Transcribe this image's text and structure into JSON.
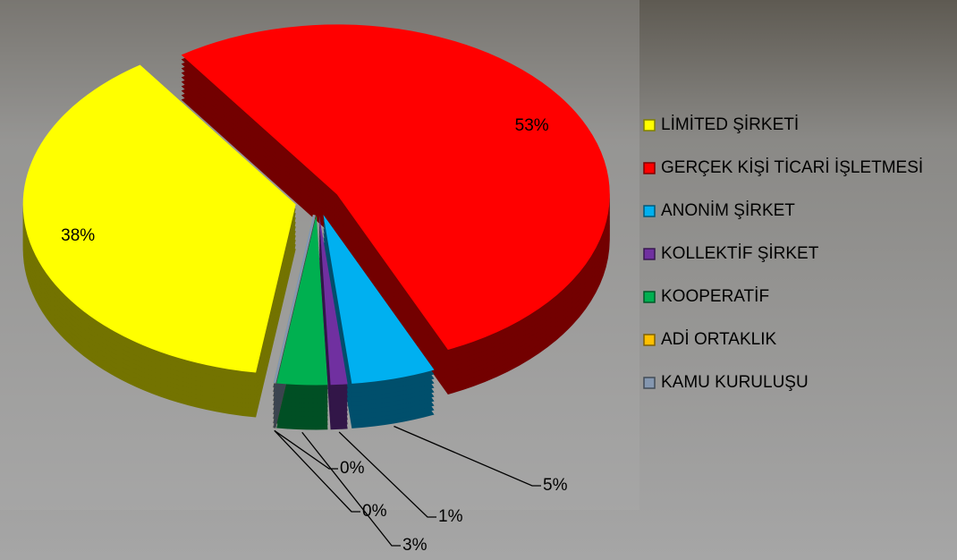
{
  "chart_data": {
    "type": "pie",
    "categories": [
      "LİMİTED ŞİRKETİ",
      "GERÇEK KİŞİ TİCARİ İŞLETMESİ",
      "ANONİM ŞİRKET",
      "KOLLEKTİF ŞİRKET",
      "KOOPERATİF",
      "ADİ ORTAKLIK",
      "KAMU KURULUŞU"
    ],
    "values": [
      38,
      53,
      5,
      1,
      3,
      0,
      0
    ],
    "value_labels": [
      "38%",
      "53%",
      "5%",
      "1%",
      "3%",
      "0%",
      "0%"
    ],
    "colors": [
      "#ffff00",
      "#ff0000",
      "#00b0f0",
      "#7030a0",
      "#00b050",
      "#ffc000",
      "#8497b0"
    ],
    "legend": "right"
  }
}
